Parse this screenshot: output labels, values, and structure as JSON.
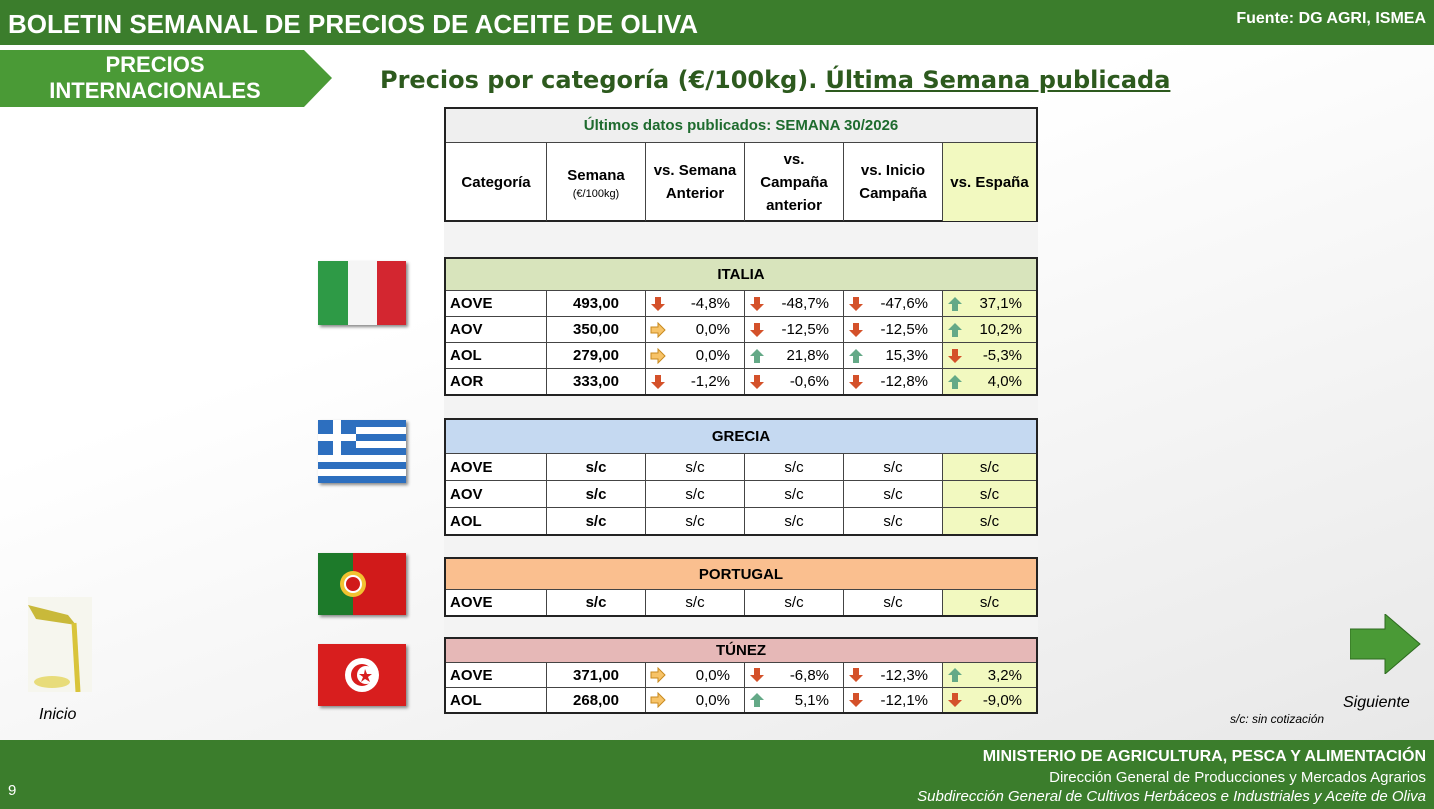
{
  "header": {
    "title": "BOLETIN SEMANAL DE PRECIOS DE ACEITE DE OLIVA",
    "source": "Fuente: DG AGRI, ISMEA"
  },
  "section_tab": "PRECIOS INTERNACIONALES",
  "subtitle": {
    "text": "Precios por categoría (€/100kg).",
    "link": "Última Semana publicada"
  },
  "table": {
    "caption": "Últimos datos publicados: SEMANA 30/2026",
    "headers": [
      "Categoría",
      "Semana",
      "vs. Semana Anterior",
      "vs. Campaña anterior",
      "vs. Inicio Campaña",
      "vs. España"
    ],
    "unit": "(€/100kg)",
    "countries": [
      {
        "name": "ITALIA",
        "rows": [
          [
            "AOVE",
            "493,00",
            "-4,8%",
            "-48,7%",
            "-47,6%",
            "37,1%"
          ],
          [
            "AOV",
            "350,00",
            "0,0%",
            "-12,5%",
            "-12,5%",
            "10,2%"
          ],
          [
            "AOL",
            "279,00",
            "0,0%",
            "21,8%",
            "15,3%",
            "-5,3%"
          ],
          [
            "AOR",
            "333,00",
            "-1,2%",
            "-0,6%",
            "-12,8%",
            "4,0%"
          ]
        ]
      },
      {
        "name": "GRECIA",
        "rows": [
          [
            "AOVE",
            "s/c",
            "s/c",
            "s/c",
            "s/c",
            "s/c"
          ],
          [
            "AOV",
            "s/c",
            "s/c",
            "s/c",
            "s/c",
            "s/c"
          ],
          [
            "AOL",
            "s/c",
            "s/c",
            "s/c",
            "s/c",
            "s/c"
          ]
        ]
      },
      {
        "name": "PORTUGAL",
        "rows": [
          [
            "AOVE",
            "s/c",
            "s/c",
            "s/c",
            "s/c",
            "s/c"
          ]
        ]
      },
      {
        "name": "TÚNEZ",
        "rows": [
          [
            "AOVE",
            "371,00",
            "0,0%",
            "-6,8%",
            "-12,3%",
            "3,2%"
          ],
          [
            "AOL",
            "268,00",
            "0,0%",
            "5,1%",
            "-12,1%",
            "-9,0%"
          ]
        ]
      }
    ]
  },
  "note": "s/c: sin cotización",
  "nav": {
    "home": "Inicio",
    "next": "Siguiente"
  },
  "footer": {
    "ministry": "MINISTERIO DE AGRICULTURA, PESCA Y ALIMENTACIÓN",
    "direction": "Dirección General de Producciones y Mercados Agrarios",
    "subdirection": "Subdirección General de Cultivos Herbáceos e Industriales y Aceite de Oliva",
    "page": "9"
  }
}
